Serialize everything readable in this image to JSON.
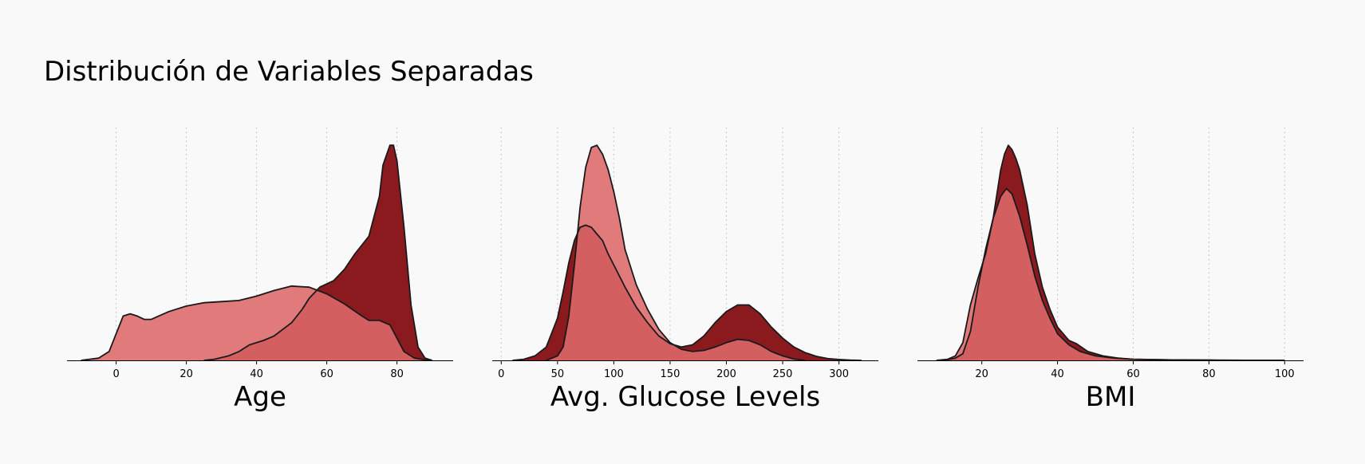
{
  "page": {
    "title": "Distribución de Variables Separadas"
  },
  "colors": {
    "background": "#f9f9f9",
    "dark_series": "#8b1a1f",
    "light_series": "#e07a7b",
    "overlap": "#d45f61",
    "outline": "#1a1a1a",
    "grid": "#b8b8b8"
  },
  "chart_data": [
    {
      "type": "area",
      "subtype": "kde-density",
      "xlabel": "Age",
      "ylabel": "",
      "xlim": [
        -14,
        96
      ],
      "ylim": [
        0,
        1.05
      ],
      "xticks": [
        0,
        20,
        40,
        60,
        80
      ],
      "grid": "vertical-dotted",
      "legend": "none",
      "series": [
        {
          "color_key": "light_series",
          "x": [
            -10,
            -5,
            -2,
            0,
            2,
            4,
            6,
            8,
            10,
            15,
            20,
            25,
            30,
            35,
            40,
            45,
            50,
            55,
            60,
            65,
            70,
            72,
            75,
            78,
            80,
            82,
            85,
            88,
            90
          ],
          "y": [
            0,
            0.01,
            0.04,
            0.12,
            0.2,
            0.21,
            0.2,
            0.185,
            0.185,
            0.22,
            0.245,
            0.26,
            0.265,
            0.27,
            0.29,
            0.315,
            0.335,
            0.33,
            0.3,
            0.255,
            0.2,
            0.18,
            0.18,
            0.16,
            0.1,
            0.04,
            0.01,
            0.002,
            0
          ]
        },
        {
          "color_key": "dark_series",
          "x": [
            25,
            28,
            32,
            35,
            38,
            42,
            45,
            50,
            53,
            55,
            58,
            62,
            65,
            68,
            72,
            75,
            76,
            78,
            79,
            80,
            82,
            84,
            86,
            88,
            90
          ],
          "y": [
            0,
            0.005,
            0.02,
            0.04,
            0.07,
            0.09,
            0.11,
            0.17,
            0.23,
            0.28,
            0.33,
            0.36,
            0.41,
            0.48,
            0.56,
            0.74,
            0.88,
            0.97,
            0.97,
            0.9,
            0.6,
            0.25,
            0.06,
            0.01,
            0
          ]
        }
      ]
    },
    {
      "type": "area",
      "subtype": "kde-density",
      "xlabel": "Avg. Glucose Levels",
      "ylabel": "",
      "xlim": [
        -8,
        335
      ],
      "ylim": [
        0,
        1.05
      ],
      "xticks": [
        0,
        50,
        100,
        150,
        200,
        250,
        300
      ],
      "grid": "vertical-dotted",
      "legend": "none",
      "series": [
        {
          "color_key": "light_series",
          "x": [
            40,
            50,
            55,
            60,
            65,
            70,
            75,
            80,
            85,
            90,
            95,
            100,
            105,
            110,
            120,
            130,
            140,
            150,
            160,
            170,
            180,
            190,
            200,
            210,
            220,
            230,
            240,
            250,
            260,
            270
          ],
          "y": [
            0,
            0.02,
            0.06,
            0.2,
            0.43,
            0.69,
            0.87,
            0.96,
            0.97,
            0.93,
            0.86,
            0.76,
            0.64,
            0.5,
            0.34,
            0.23,
            0.14,
            0.08,
            0.05,
            0.04,
            0.045,
            0.06,
            0.08,
            0.095,
            0.09,
            0.07,
            0.04,
            0.02,
            0.006,
            0
          ]
        },
        {
          "color_key": "dark_series",
          "x": [
            10,
            20,
            30,
            40,
            50,
            55,
            60,
            65,
            70,
            75,
            80,
            85,
            90,
            95,
            100,
            110,
            120,
            130,
            140,
            150,
            160,
            170,
            180,
            190,
            200,
            210,
            220,
            230,
            240,
            250,
            260,
            270,
            280,
            290,
            300,
            310,
            320
          ],
          "y": [
            0,
            0.005,
            0.02,
            0.06,
            0.19,
            0.31,
            0.44,
            0.54,
            0.6,
            0.61,
            0.6,
            0.57,
            0.54,
            0.48,
            0.43,
            0.33,
            0.24,
            0.17,
            0.11,
            0.075,
            0.06,
            0.07,
            0.11,
            0.17,
            0.22,
            0.25,
            0.25,
            0.21,
            0.15,
            0.1,
            0.06,
            0.035,
            0.018,
            0.008,
            0.004,
            0.001,
            0
          ]
        }
      ]
    },
    {
      "type": "area",
      "subtype": "kde-density",
      "xlabel": "BMI",
      "ylabel": "",
      "xlim": [
        3,
        105
      ],
      "ylim": [
        0,
        1.05
      ],
      "xticks": [
        20,
        40,
        60,
        80,
        100
      ],
      "grid": "vertical-dotted",
      "legend": "none",
      "series": [
        {
          "color_key": "light_series",
          "x": [
            8,
            11,
            13,
            15,
            17,
            19,
            21,
            23,
            25,
            26.5,
            28,
            30,
            32,
            34,
            36,
            38,
            40,
            43,
            46,
            50,
            55,
            60,
            70,
            80,
            90,
            100
          ],
          "y": [
            0,
            0.005,
            0.02,
            0.08,
            0.25,
            0.37,
            0.48,
            0.64,
            0.74,
            0.775,
            0.75,
            0.65,
            0.52,
            0.38,
            0.27,
            0.19,
            0.12,
            0.07,
            0.04,
            0.02,
            0.01,
            0.005,
            0.002,
            0.001,
            0.0005,
            0
          ]
        },
        {
          "color_key": "dark_series",
          "x": [
            10,
            13,
            15,
            17,
            19,
            21,
            23,
            25,
            26,
            27,
            28,
            29,
            30,
            32,
            34,
            36,
            38,
            40,
            43,
            45,
            48,
            52,
            56,
            60,
            70,
            80,
            90,
            100
          ],
          "y": [
            0,
            0.01,
            0.03,
            0.13,
            0.33,
            0.5,
            0.64,
            0.86,
            0.93,
            0.97,
            0.95,
            0.91,
            0.86,
            0.7,
            0.48,
            0.33,
            0.23,
            0.15,
            0.09,
            0.075,
            0.04,
            0.02,
            0.01,
            0.005,
            0.002,
            0.001,
            0.0005,
            0
          ]
        }
      ]
    }
  ]
}
